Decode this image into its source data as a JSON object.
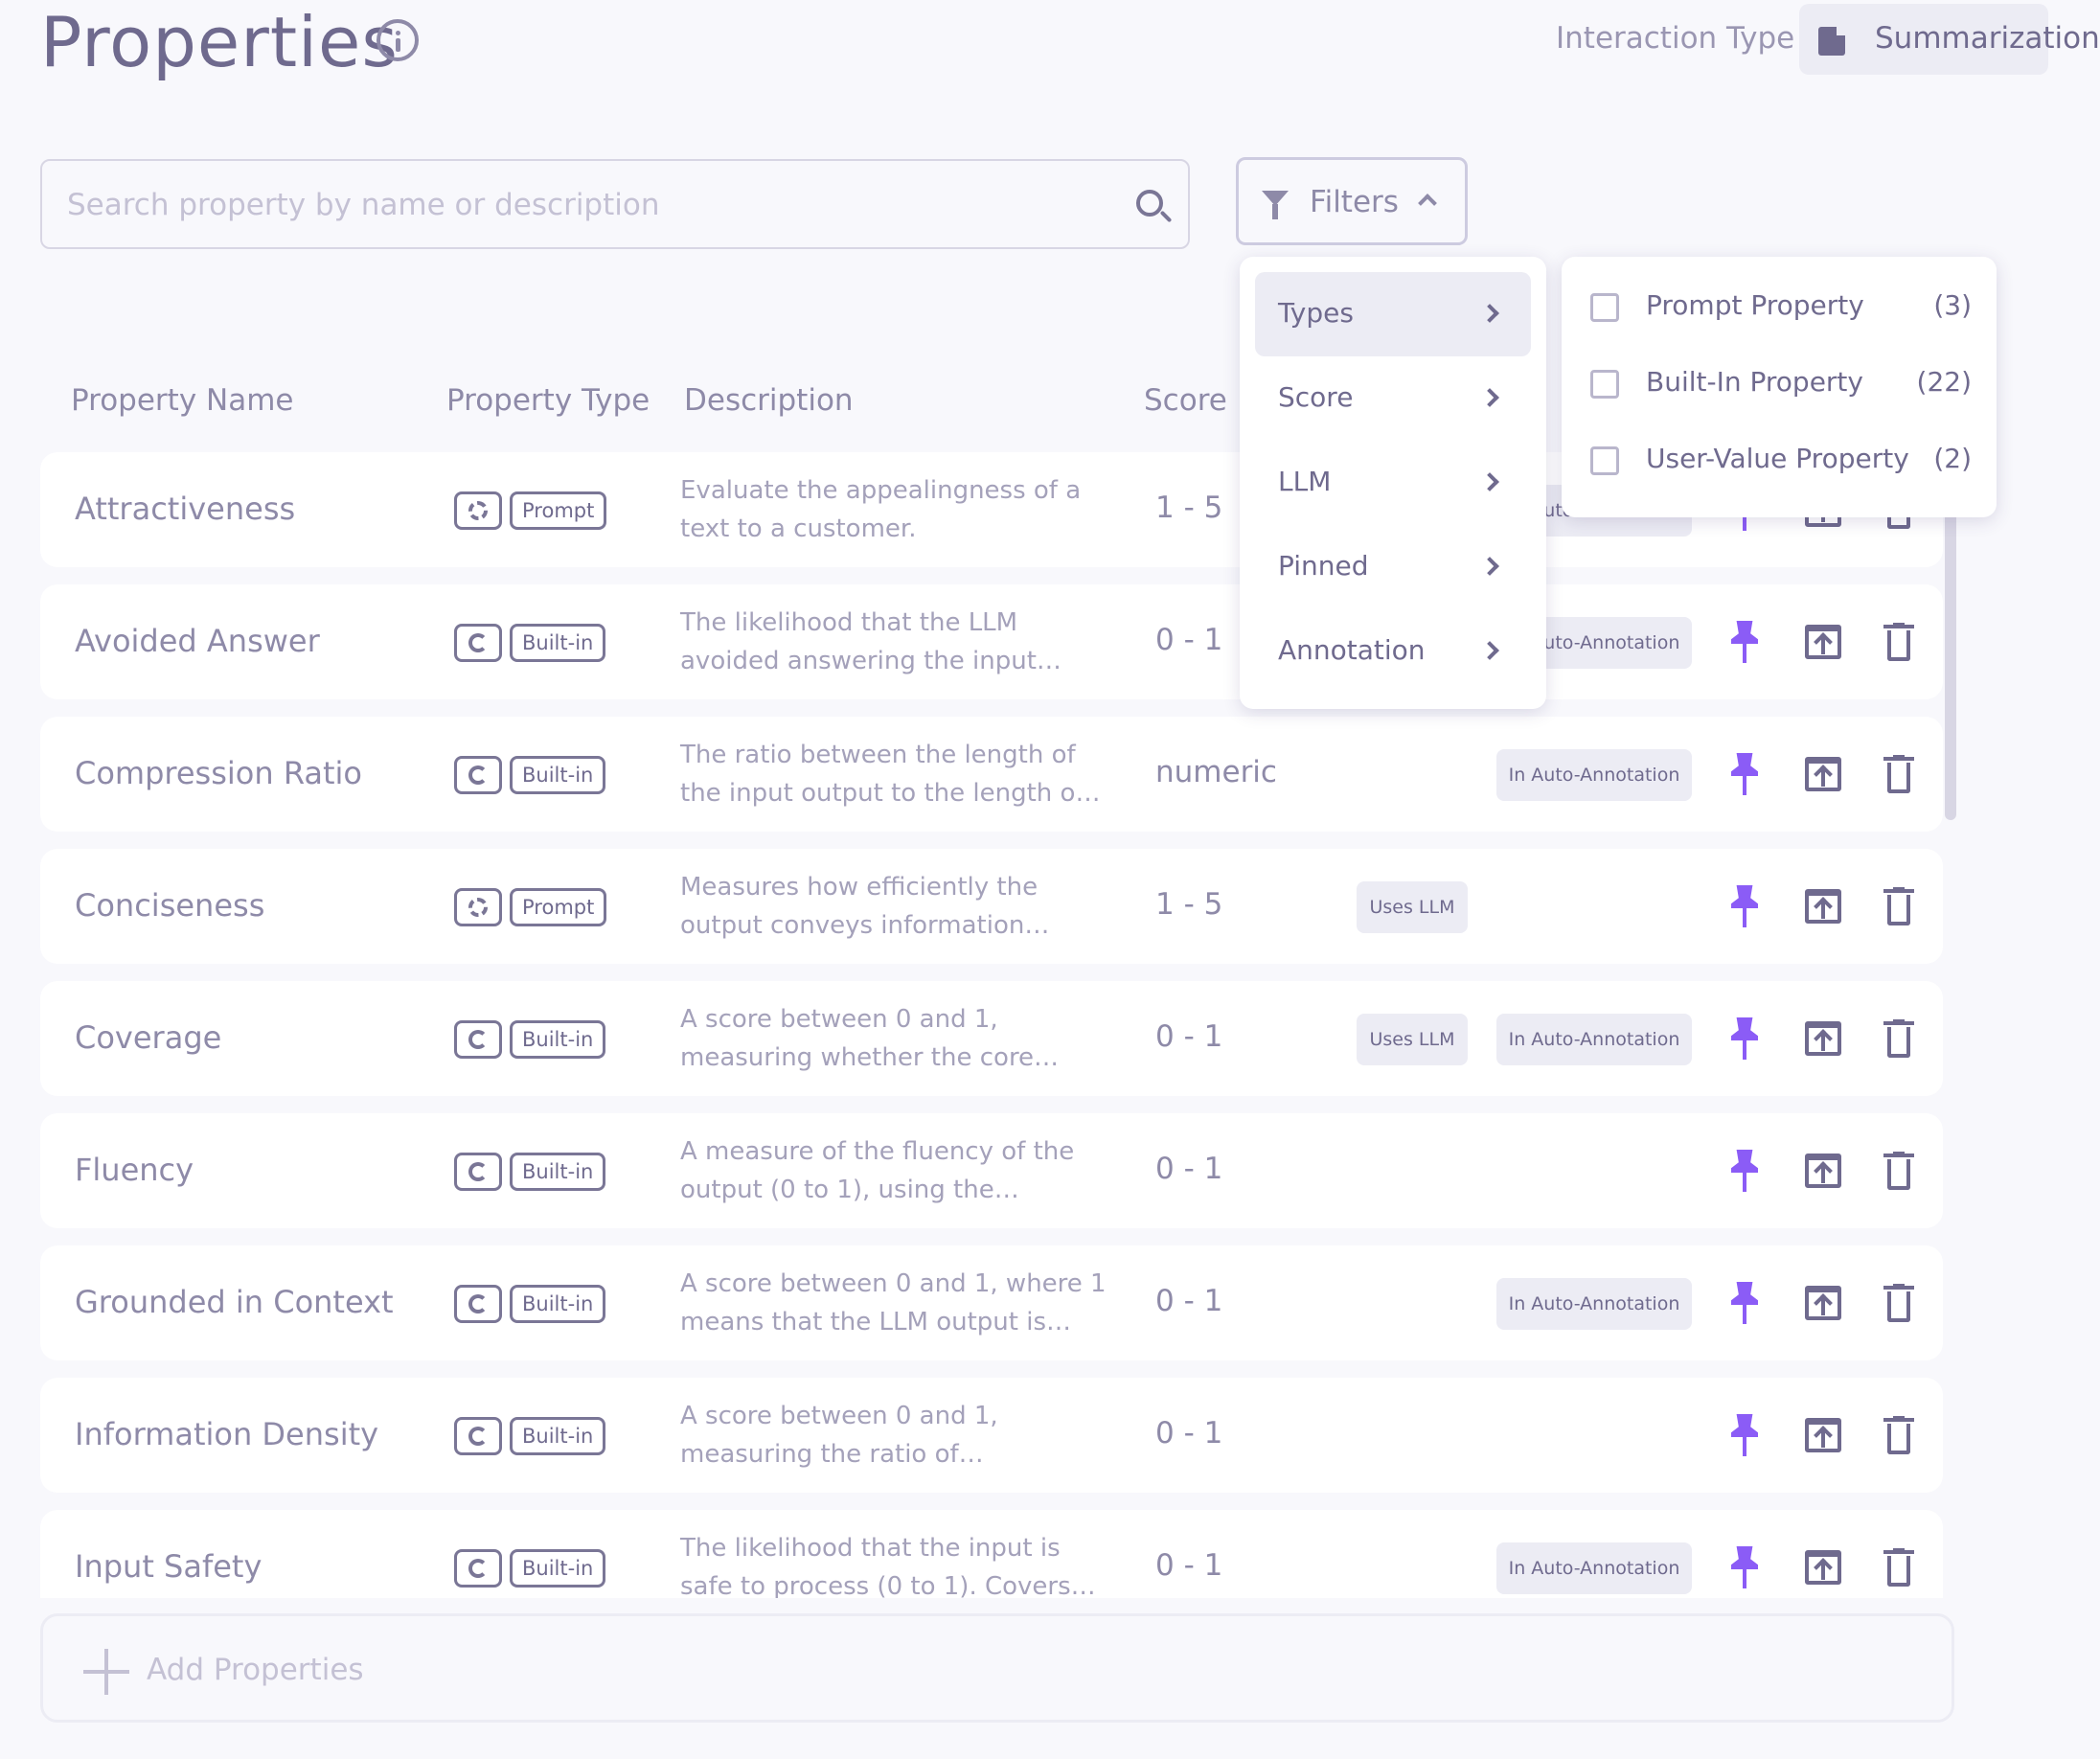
{
  "header": {
    "title": "Properties",
    "interaction_label": "Interaction Type",
    "interaction_value": "Summarization"
  },
  "search": {
    "placeholder": "Search property by name or description",
    "value": ""
  },
  "filters": {
    "label": "Filters"
  },
  "columns": {
    "name": "Property Name",
    "type": "Property Type",
    "description": "Description",
    "score": "Score"
  },
  "rows": [
    {
      "name": "Attractiveness",
      "type_kind": "prompt",
      "type": "Prompt",
      "desc1": "Evaluate the appealingness of a",
      "desc2": "text to a customer.",
      "score": "1 - 5",
      "llm": "",
      "auto": "In Auto-Annotation"
    },
    {
      "name": "Avoided Answer",
      "type_kind": "built",
      "type": "Built-in",
      "desc1": "The likelihood that the LLM",
      "desc2": "avoided answering the input…",
      "score": "0 - 1",
      "llm": "",
      "auto": "In Auto-Annotation"
    },
    {
      "name": "Compression Ratio",
      "type_kind": "built",
      "type": "Built-in",
      "desc1": "The ratio between the length of",
      "desc2": "the input output to the length o…",
      "score": "numeric",
      "llm": "",
      "auto": "In Auto-Annotation"
    },
    {
      "name": "Conciseness",
      "type_kind": "prompt",
      "type": "Prompt",
      "desc1": "Measures how efficiently the",
      "desc2": "output conveys information…",
      "score": "1 - 5",
      "llm": "Uses LLM",
      "auto": ""
    },
    {
      "name": "Coverage",
      "type_kind": "built",
      "type": "Built-in",
      "desc1": "A score between 0 and 1,",
      "desc2": "measuring whether the core…",
      "score": "0 - 1",
      "llm": "Uses LLM",
      "auto": "In Auto-Annotation"
    },
    {
      "name": "Fluency",
      "type_kind": "built",
      "type": "Built-in",
      "desc1": "A measure of the fluency of the",
      "desc2": "output (0 to 1), using the…",
      "score": "0 - 1",
      "llm": "",
      "auto": ""
    },
    {
      "name": "Grounded in Context",
      "type_kind": "built",
      "type": "Built-in",
      "desc1": "A score between 0 and 1, where 1",
      "desc2": "means that the LLM output is…",
      "score": "0 - 1",
      "llm": "",
      "auto": "In Auto-Annotation"
    },
    {
      "name": "Information Density",
      "type_kind": "built",
      "type": "Built-in",
      "desc1": "A score between 0 and 1,",
      "desc2": "measuring the ratio of…",
      "score": "0 - 1",
      "llm": "",
      "auto": ""
    },
    {
      "name": "Input Safety",
      "type_kind": "built",
      "type": "Built-in",
      "desc1": "The likelihood that the input is",
      "desc2": "safe to process (0 to 1). Covers…",
      "score": "0 - 1",
      "llm": "",
      "auto": "In Auto-Annotation"
    }
  ],
  "add": {
    "label": "Add Properties"
  },
  "filter_menu": {
    "items": [
      "Types",
      "Score",
      "LLM",
      "Pinned",
      "Annotation"
    ],
    "active": "Types"
  },
  "type_submenu": [
    {
      "label": "Prompt Property",
      "count": "(3)"
    },
    {
      "label": "Built-In Property",
      "count": "(22)"
    },
    {
      "label": "User-Value Property",
      "count": "(2)"
    }
  ],
  "colors": {
    "accent": "#8b5cf6",
    "text": "#6f6a8e",
    "muted": "#8e8aa8",
    "chip_bg": "#ececf4"
  }
}
